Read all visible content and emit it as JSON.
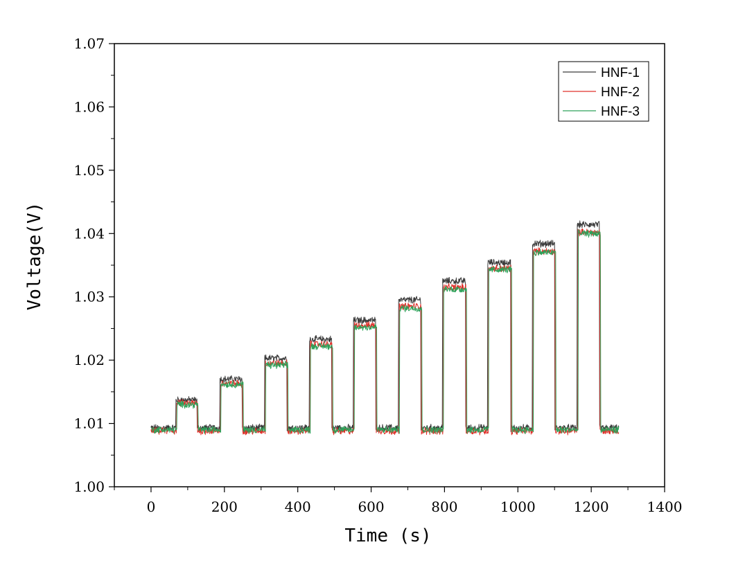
{
  "chart_data": {
    "type": "line",
    "xlabel": "Time (s)",
    "ylabel": "Voltage(V)",
    "xlim": [
      -100,
      1400
    ],
    "ylim": [
      1.0,
      1.07
    ],
    "xticks": [
      "0",
      "200",
      "400",
      "600",
      "800",
      "1000",
      "1200",
      "1400"
    ],
    "yticks": [
      "1.00",
      "1.01",
      "1.02",
      "1.03",
      "1.04",
      "1.05",
      "1.06",
      "1.07"
    ],
    "grid": false,
    "legend_position": "top-right",
    "pulses": [
      {
        "start": 68,
        "end": 125
      },
      {
        "start": 188,
        "end": 248
      },
      {
        "start": 310,
        "end": 370
      },
      {
        "start": 432,
        "end": 492
      },
      {
        "start": 552,
        "end": 612
      },
      {
        "start": 675,
        "end": 735
      },
      {
        "start": 795,
        "end": 857
      },
      {
        "start": 918,
        "end": 980
      },
      {
        "start": 1040,
        "end": 1100
      },
      {
        "start": 1162,
        "end": 1222
      }
    ],
    "x_range": [
      0,
      1275
    ],
    "series": [
      {
        "name": "HNF-1",
        "color": "#3a3a3a",
        "baseline": 1.0093,
        "peaks": [
          1.0137,
          1.017,
          1.0203,
          1.0233,
          1.0263,
          1.0295,
          1.0325,
          1.0354,
          1.0384,
          1.0414
        ]
      },
      {
        "name": "HNF-2",
        "color": "#e0302a",
        "baseline": 1.0088,
        "peaks": [
          1.0132,
          1.0163,
          1.0195,
          1.0225,
          1.0255,
          1.0285,
          1.0315,
          1.0345,
          1.0372,
          1.0402
        ]
      },
      {
        "name": "HNF-3",
        "color": "#2ea25a",
        "baseline": 1.009,
        "peaks": [
          1.013,
          1.0162,
          1.0192,
          1.0222,
          1.0252,
          1.0282,
          1.0312,
          1.0343,
          1.037,
          1.04
        ]
      }
    ]
  }
}
